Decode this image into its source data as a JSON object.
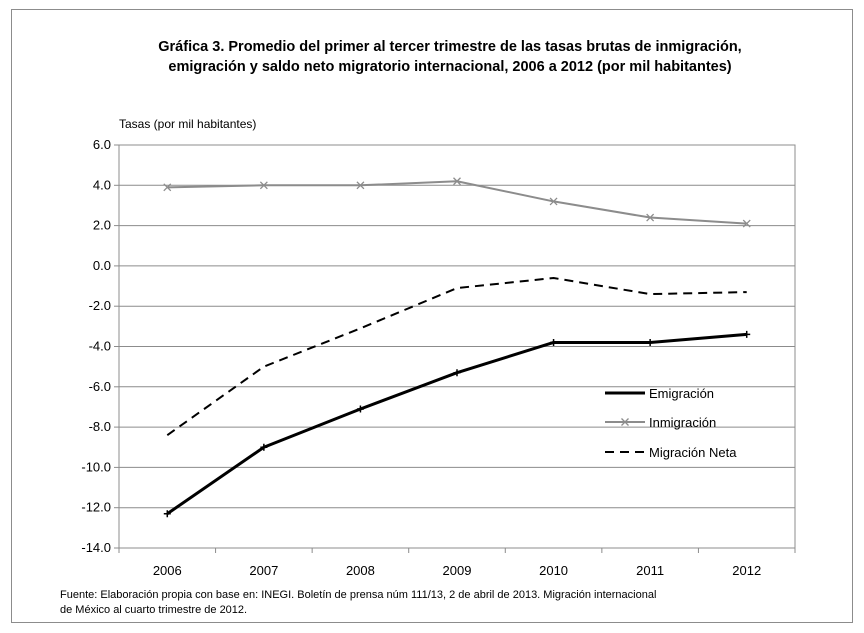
{
  "chart_data": {
    "type": "line",
    "title_lines": [
      "Gráfica 3. Promedio del primer al tercer trimestre de las tasas brutas de inmigración,",
      "emigración y saldo neto migratorio internacional, 2006 a 2012 (por mil habitantes)"
    ],
    "ylabel": "Tasas (por mil habitantes)",
    "x": [
      "2006",
      "2007",
      "2008",
      "2009",
      "2010",
      "2011",
      "2012"
    ],
    "ylim": [
      -14,
      6
    ],
    "yticks": [
      "6.0",
      "4.0",
      "2.0",
      "0.0",
      "-2.0",
      "-4.0",
      "-6.0",
      "-8.0",
      "-10.0",
      "-12.0",
      "-14.0"
    ],
    "ytick_values": [
      6,
      4,
      2,
      0,
      -2,
      -4,
      -6,
      -8,
      -10,
      -12,
      -14
    ],
    "grid": true,
    "legend_position": "right",
    "series": [
      {
        "name": "Emigración",
        "values": [
          -12.3,
          -9.0,
          -7.1,
          -5.3,
          -3.8,
          -3.8,
          -3.4
        ],
        "color": "#000000",
        "style": "solid-thick",
        "marker": "plus"
      },
      {
        "name": "Inmigración",
        "values": [
          3.9,
          4.0,
          4.0,
          4.2,
          3.2,
          2.4,
          2.1
        ],
        "color": "#8c8c8c",
        "style": "solid",
        "marker": "x"
      },
      {
        "name": "Migración Neta",
        "values": [
          -8.4,
          -5.0,
          -3.1,
          -1.1,
          -0.6,
          -1.4,
          -1.3
        ],
        "color": "#000000",
        "style": "dashed",
        "marker": "none"
      }
    ],
    "source_lines": [
      "Fuente: Elaboración propia con base en: INEGI. Boletín de prensa núm 111/13,  2 de abril de 2013.  Migración internacional",
      "de México al cuarto trimestre de 2012."
    ]
  }
}
